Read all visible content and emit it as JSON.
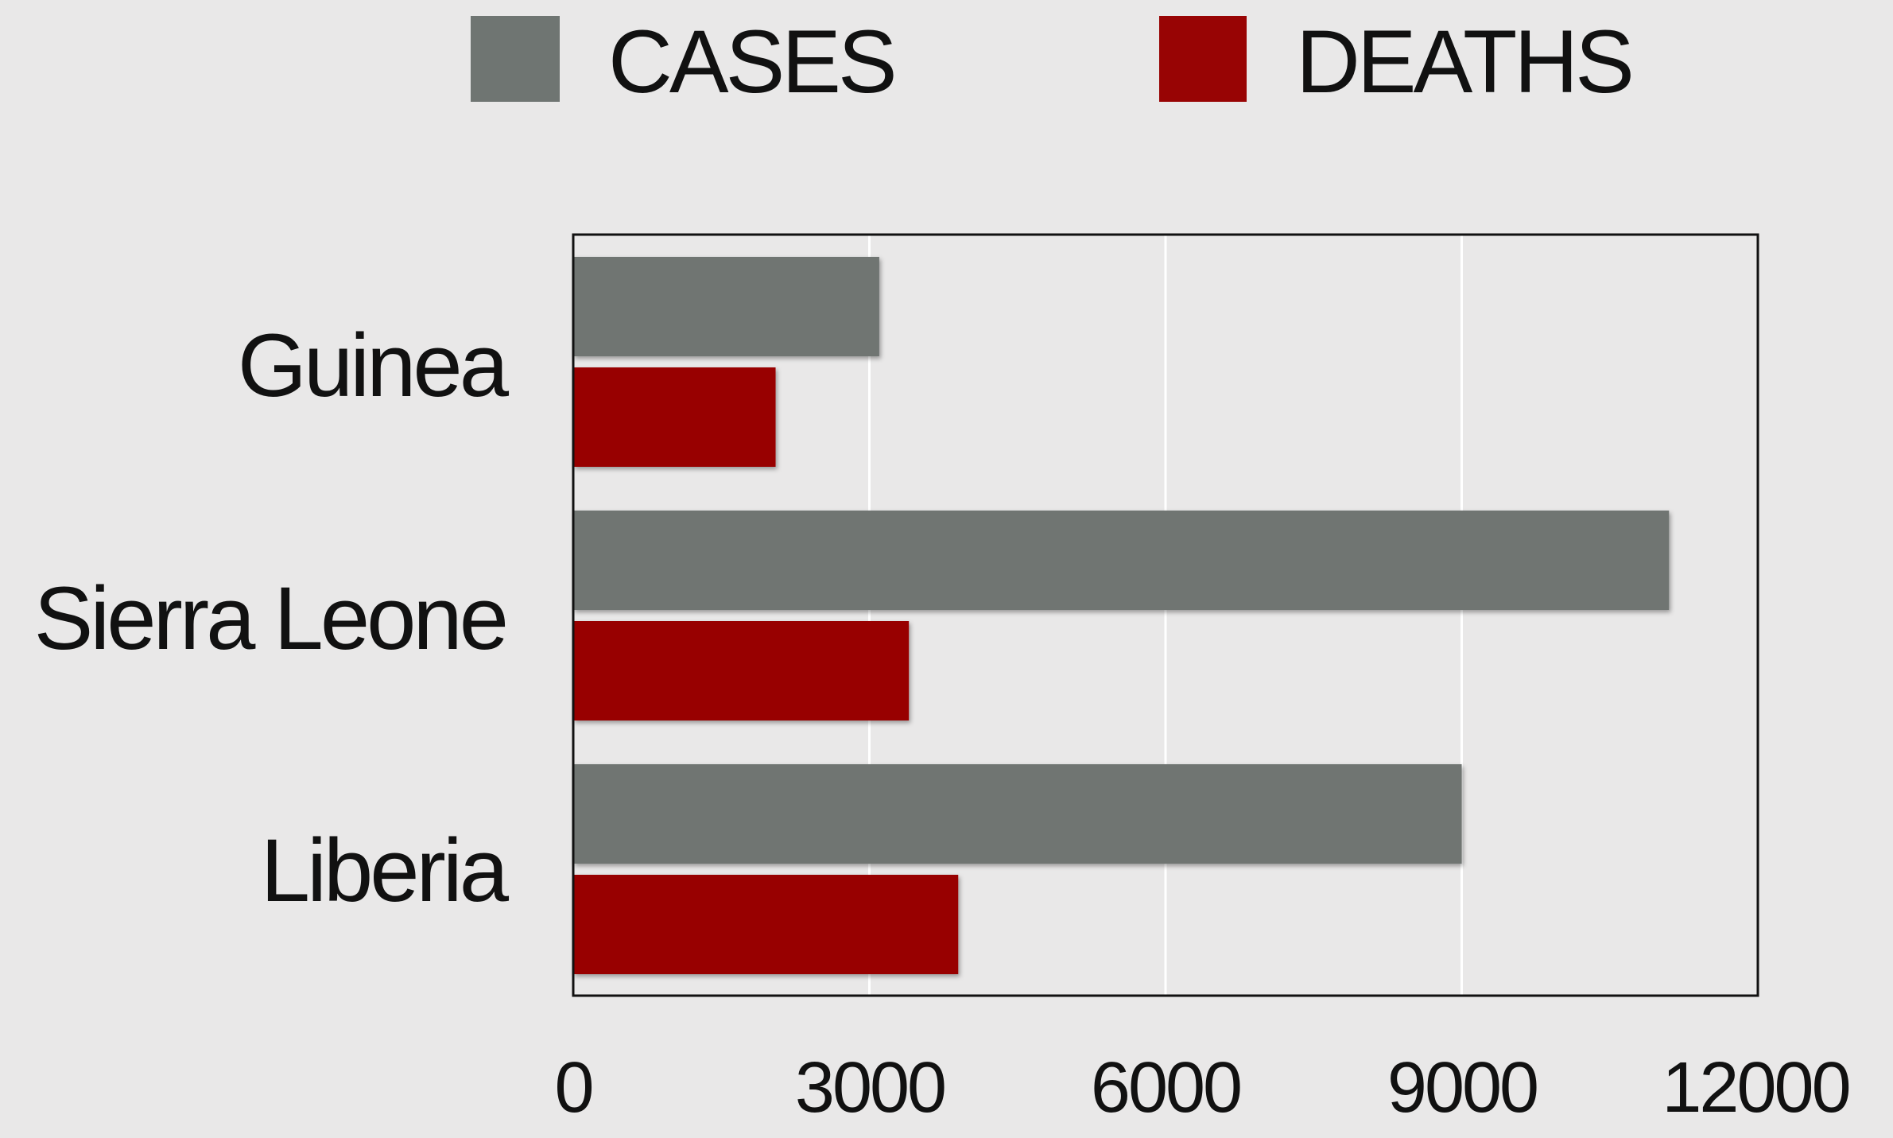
{
  "chart_data": {
    "type": "bar",
    "orientation": "horizontal",
    "categories": [
      "Guinea",
      "Sierra Leone",
      "Liberia"
    ],
    "series": [
      {
        "name": "CASES",
        "color": "#6f7572",
        "values": [
          3100,
          11100,
          9000
        ]
      },
      {
        "name": "DEATHS",
        "color": "#980404",
        "values": [
          2050,
          3400,
          3900
        ]
      }
    ],
    "xlim": [
      0,
      12000
    ],
    "xticks": [
      "0",
      "3000",
      "6000",
      "9000",
      "12000"
    ],
    "grid": "vertical",
    "legend": "top"
  }
}
